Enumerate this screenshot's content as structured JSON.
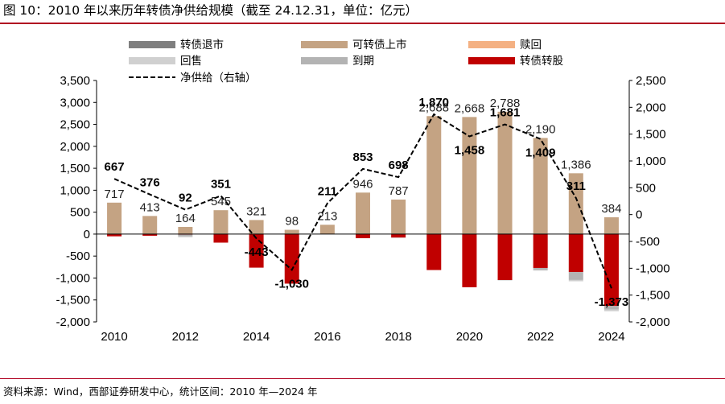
{
  "header": {
    "title": "图 10：2010 年以来历年转债净供给规模（截至 24.12.31，单位：亿元）"
  },
  "footer": {
    "source": "资料来源：Wind，西部证券研发中心，统计区间：2010 年—2024 年"
  },
  "colors": {
    "delisting": "#7f7f7f",
    "listing": "#c4a383",
    "redemption": "#f4b183",
    "putback": "#d0d0d0",
    "maturity": "#b3b3b3",
    "conversion": "#c00000",
    "net": "#000000",
    "rule": "#b00020"
  },
  "chart_data": {
    "type": "bar",
    "title": "2010 年以来历年转债净供给规模",
    "categories": [
      "2010",
      "2011",
      "2012",
      "2013",
      "2014",
      "2015",
      "2016",
      "2017",
      "2018",
      "2019",
      "2020",
      "2021",
      "2022",
      "2023",
      "2024"
    ],
    "x_tick_labels": [
      "2010",
      "2012",
      "2014",
      "2016",
      "2018",
      "2020",
      "2022",
      "2024"
    ],
    "y_left": {
      "min": -2000,
      "max": 3500,
      "step": 500,
      "tick_labels": [
        "3,500",
        "3,000",
        "2,500",
        "2,000",
        "1,500",
        "1,000",
        "500",
        "0",
        "-500",
        "-1,000",
        "-1,500",
        "-2,000"
      ]
    },
    "y_right": {
      "min": -2000,
      "max": 2500,
      "step": 500,
      "tick_labels": [
        "2,500",
        "2,000",
        "1,500",
        "1,000",
        "500",
        "0",
        "-500",
        "-1,000",
        "-1,500",
        "-2,000"
      ]
    },
    "series": [
      {
        "key": "delisting",
        "name": "转债退市",
        "axis": "left",
        "kind": "bar",
        "values": [
          0,
          0,
          0,
          0,
          0,
          0,
          0,
          0,
          0,
          0,
          0,
          0,
          0,
          0,
          0
        ]
      },
      {
        "key": "listing",
        "name": "可转债上市",
        "axis": "left",
        "kind": "bar",
        "values": [
          717,
          413,
          164,
          545,
          321,
          98,
          213,
          946,
          787,
          2688,
          2668,
          2788,
          2190,
          1386,
          384
        ]
      },
      {
        "key": "redemption",
        "name": "赎回",
        "axis": "left",
        "kind": "bar",
        "values": [
          0,
          0,
          0,
          0,
          0,
          0,
          0,
          0,
          0,
          0,
          0,
          0,
          0,
          0,
          0
        ]
      },
      {
        "key": "putback",
        "name": "回售",
        "axis": "left",
        "kind": "bar",
        "values": [
          0,
          0,
          -20,
          0,
          0,
          0,
          0,
          0,
          -10,
          0,
          0,
          -10,
          -10,
          -30,
          -40
        ]
      },
      {
        "key": "maturity",
        "name": "到期",
        "axis": "left",
        "kind": "bar",
        "values": [
          0,
          0,
          -40,
          0,
          0,
          0,
          0,
          0,
          0,
          0,
          0,
          0,
          -50,
          -180,
          -80
        ]
      },
      {
        "key": "conversion",
        "name": "转债转股",
        "axis": "left",
        "kind": "bar",
        "values": [
          -50,
          -37,
          -12,
          -194,
          -764,
          -1128,
          0,
          -93,
          -79,
          -818,
          -1210,
          -1047,
          -771,
          -865,
          -1637
        ]
      },
      {
        "key": "net",
        "name": "净供给（右轴）",
        "axis": "right",
        "kind": "line",
        "style": "dashed",
        "values": [
          667,
          376,
          92,
          351,
          -443,
          -1030,
          211,
          853,
          698,
          1870,
          1458,
          1681,
          1409,
          311,
          -1373
        ]
      }
    ],
    "bar_labels": [
      "717",
      "413",
      "164",
      "545",
      "321",
      "98",
      "213",
      "946",
      "787",
      "2,688",
      "2,668",
      "2,788",
      "2,190",
      "1,386",
      "384"
    ],
    "net_labels": [
      "667",
      "376",
      "92",
      "351",
      "-443",
      "-1,030",
      "211",
      "853",
      "698",
      "1,870",
      "1,458",
      "1,681",
      "1,409",
      "311",
      "-1,373"
    ],
    "legend_position": "top"
  }
}
